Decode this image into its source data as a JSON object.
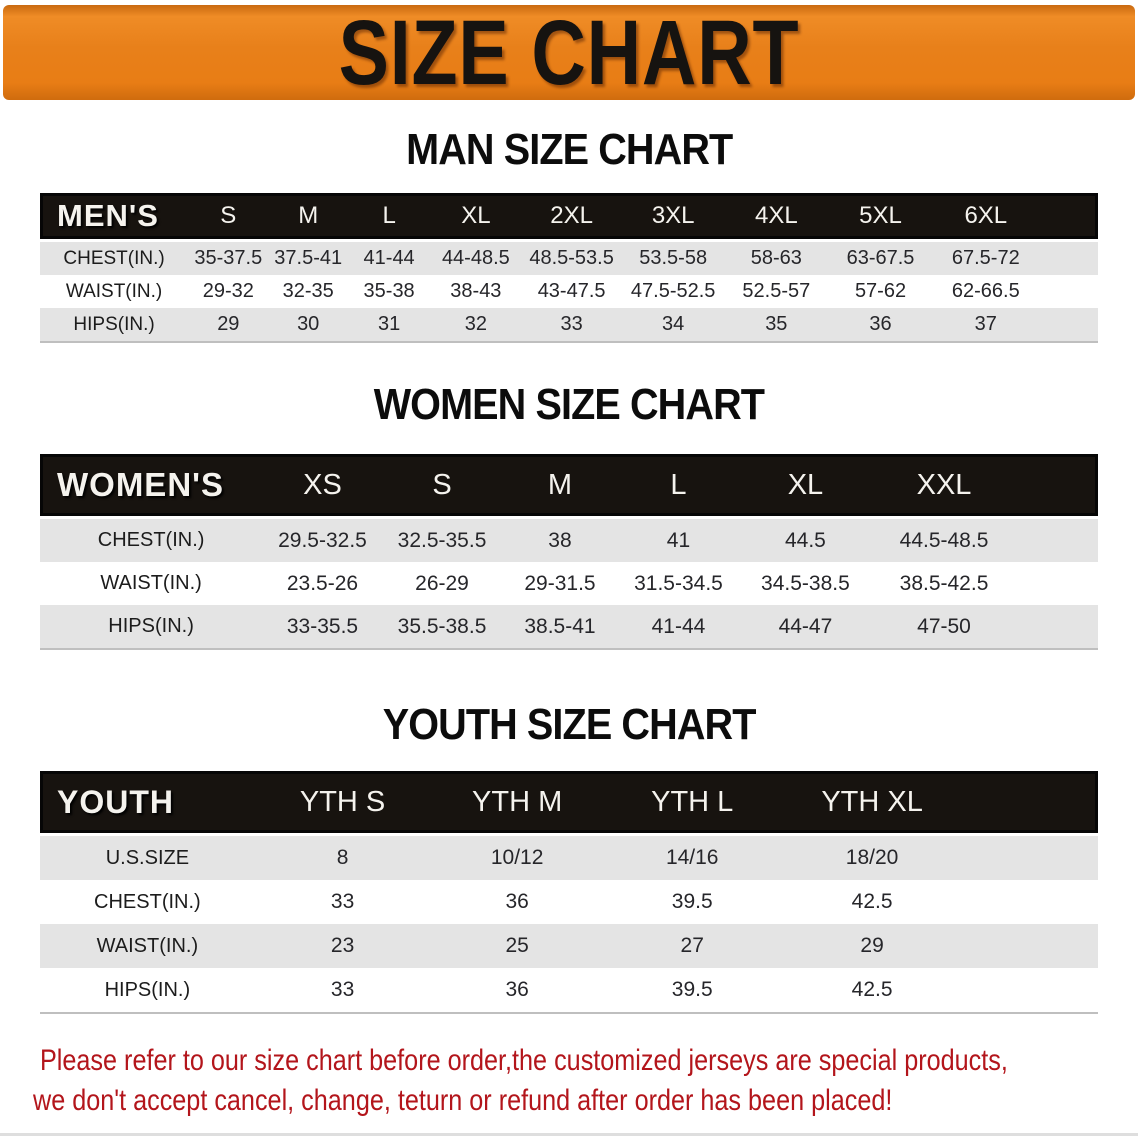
{
  "banner": {
    "title": "SIZE CHART",
    "accent_color": "#e8801a"
  },
  "sections": [
    {
      "id": "men",
      "heading": "MAN SIZE CHART",
      "table": {
        "header_label": "MEN'S",
        "columns": [
          "S",
          "M",
          "L",
          "XL",
          "2XL",
          "3XL",
          "4XL",
          "5XL",
          "6XL"
        ],
        "rows": [
          {
            "label": "CHEST(IN.)",
            "values": [
              "35-37.5",
              "37.5-41",
              "41-44",
              "44-48.5",
              "48.5-53.5",
              "53.5-58",
              "58-63",
              "63-67.5",
              "67.5-72"
            ]
          },
          {
            "label": "WAIST(IN.)",
            "values": [
              "29-32",
              "32-35",
              "35-38",
              "38-43",
              "43-47.5",
              "47.5-52.5",
              "52.5-57",
              "57-62",
              "62-66.5"
            ]
          },
          {
            "label": "HIPS(IN.)",
            "values": [
              "29",
              "30",
              "31",
              "32",
              "33",
              "34",
              "35",
              "36",
              "37"
            ]
          }
        ]
      }
    },
    {
      "id": "women",
      "heading": "WOMEN SIZE CHART",
      "table": {
        "header_label": "WOMEN'S",
        "columns": [
          "XS",
          "S",
          "M",
          "L",
          "XL",
          "XXL"
        ],
        "rows": [
          {
            "label": "CHEST(IN.)",
            "values": [
              "29.5-32.5",
              "32.5-35.5",
              "38",
              "41",
              "44.5",
              "44.5-48.5"
            ]
          },
          {
            "label": "WAIST(IN.)",
            "values": [
              "23.5-26",
              "26-29",
              "29-31.5",
              "31.5-34.5",
              "34.5-38.5",
              "38.5-42.5"
            ]
          },
          {
            "label": "HIPS(IN.)",
            "values": [
              "33-35.5",
              "35.5-38.5",
              "38.5-41",
              "41-44",
              "44-47",
              "47-50"
            ]
          }
        ]
      }
    },
    {
      "id": "youth",
      "heading": "YOUTH SIZE CHART",
      "table": {
        "header_label": "YOUTH",
        "columns": [
          "YTH S",
          "YTH M",
          "YTH L",
          "YTH XL"
        ],
        "rows": [
          {
            "label": "U.S.SIZE",
            "values": [
              "8",
              "10/12",
              "14/16",
              "18/20"
            ]
          },
          {
            "label": "CHEST(IN.)",
            "values": [
              "33",
              "36",
              "39.5",
              "42.5"
            ]
          },
          {
            "label": "WAIST(IN.)",
            "values": [
              "23",
              "25",
              "27",
              "29"
            ]
          },
          {
            "label": "HIPS(IN.)",
            "values": [
              "33",
              "36",
              "39.5",
              "42.5"
            ]
          }
        ]
      }
    }
  ],
  "footer_note": {
    "line1": "Please refer to our size chart before order,the customized jerseys are special products,",
    "line2": "we don't accept cancel, change, teturn or refund after order has been placed!",
    "color": "#b3151b"
  },
  "colors": {
    "banner_orange": "#e8801a",
    "header_bar_black": "#17130f",
    "zebra_gray": "#e4e4e4",
    "note_red": "#b3151b"
  }
}
